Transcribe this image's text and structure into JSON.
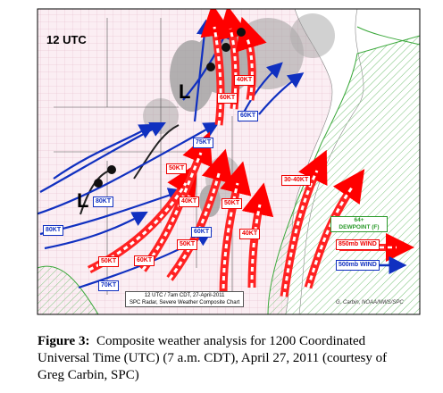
{
  "figure": {
    "map": {
      "time_label": "12 UTC",
      "low_labels": [
        "L",
        "L"
      ],
      "wind_850mb_labels": [
        "40KT",
        "60KT",
        "50KT",
        "40KT",
        "30-40KT",
        "50KT",
        "40KT",
        "50KT",
        "60KT",
        "50KT"
      ],
      "wind_500mb_labels": [
        "60KT",
        "75KT",
        "80KT",
        "80KT",
        "60KT",
        "70KT"
      ],
      "legend": {
        "dewpoint": [
          "64+",
          "DEWPOINT (F)"
        ],
        "wind_850mb": "850mb WIND",
        "wind_500mb": "500mb WIND"
      },
      "chart_caption": [
        "12 UTC / 7am CDT, 27-April-2011",
        "SPC Radar, Severe Weather Composite Chart"
      ],
      "credit": "G. Carbin, NOAA/NWS/SPC"
    },
    "caption": {
      "label": "Figure 3:",
      "text": "Composite weather analysis for 1200 Coordinated Universal Time (UTC) (7 a.m. CDT), April 27, 2011 (courtesy of Greg Carbin, SPC)"
    }
  }
}
